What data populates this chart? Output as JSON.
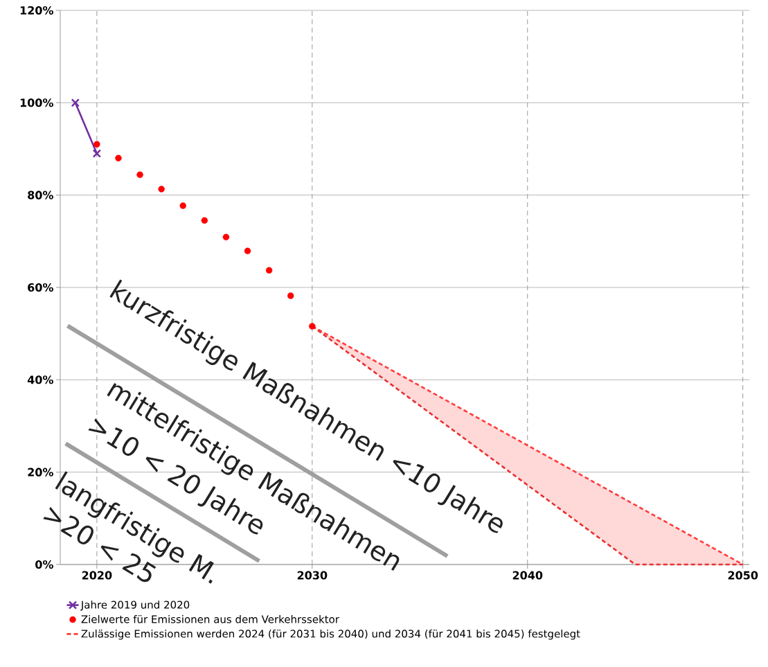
{
  "chart_data": {
    "type": "line",
    "xlim": [
      2018.3,
      2050.3
    ],
    "ylim": [
      0,
      120
    ],
    "xticks": [
      2020,
      2030,
      2040,
      2050
    ],
    "yticks": [
      {
        "value": 0,
        "label": "0%"
      },
      {
        "value": 20,
        "label": "20%"
      },
      {
        "value": 40,
        "label": "40%"
      },
      {
        "value": 60,
        "label": "60%"
      },
      {
        "value": 80,
        "label": "80%"
      },
      {
        "value": 100,
        "label": "100%"
      },
      {
        "value": 120,
        "label": "120%"
      }
    ],
    "grid": true,
    "legend": "bottom",
    "series": [
      {
        "name": "Jahre 2019 und 2020",
        "type": "line",
        "color": "#7030a0",
        "marker": "cross",
        "x": [
          2019,
          2020
        ],
        "values": [
          100,
          89
        ]
      },
      {
        "name": "Zielwerte für Emissionen aus dem Verkehrssektor",
        "type": "scatter",
        "color": "#ff0000",
        "marker": "circle",
        "x": [
          2020,
          2021,
          2022,
          2023,
          2024,
          2025,
          2026,
          2027,
          2028,
          2029,
          2030
        ],
        "values": [
          91,
          88,
          84.4,
          81.3,
          77.7,
          74.5,
          70.9,
          67.9,
          63.7,
          58.2,
          51.6
        ]
      },
      {
        "name": "Zulässige Emissionen werden 2024 (für 2031 bis 2040) und 2034 (für 2041 bis 2045) festgelegt",
        "type": "line",
        "color": "#ff3b3b",
        "line_style": "dashed",
        "x": [
          2030,
          2045,
          2050
        ],
        "values": [
          51.6,
          12.9,
          0
        ],
        "lower": [
          51.6,
          0,
          0
        ],
        "upper": [
          51.6,
          12.9,
          0
        ]
      },
      {
        "type": "line",
        "color": "#e83030",
        "line_style": "dashed",
        "x": [
          2030,
          2045,
          2050
        ],
        "values": [
          51.6,
          0,
          0
        ]
      }
    ],
    "annotations": [
      "kurzfristige Maßnahmen <10 Jahre",
      "mittelfristige Maßnahmen",
      ">10 < 20 Jahre",
      "langfristige M.",
      ">20 < 25"
    ]
  }
}
